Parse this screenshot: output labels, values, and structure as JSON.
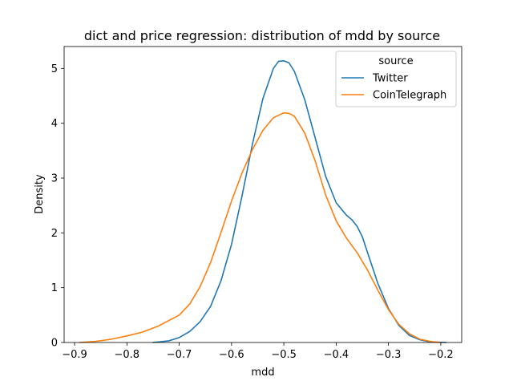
{
  "chart_data": {
    "type": "line",
    "title": "dict and price regression: distribution of mdd by source",
    "xlabel": "mdd",
    "ylabel": "Density",
    "xlim": [
      -0.92,
      -0.16
    ],
    "ylim": [
      0,
      5.4
    ],
    "xticks": [
      -0.9,
      -0.8,
      -0.7,
      -0.6,
      -0.5,
      -0.4,
      -0.3,
      -0.2
    ],
    "xtick_labels": [
      "−0.9",
      "−0.8",
      "−0.7",
      "−0.6",
      "−0.5",
      "−0.4",
      "−0.3",
      "−0.2"
    ],
    "yticks": [
      0,
      1,
      2,
      3,
      4,
      5
    ],
    "ytick_labels": [
      "0",
      "1",
      "2",
      "3",
      "4",
      "5"
    ],
    "legend": {
      "title": "source",
      "placement": "top-right"
    },
    "grid": false,
    "series": [
      {
        "name": "Twitter",
        "color": "#1f77b4",
        "x": [
          -0.75,
          -0.72,
          -0.7,
          -0.68,
          -0.66,
          -0.64,
          -0.62,
          -0.6,
          -0.58,
          -0.56,
          -0.54,
          -0.52,
          -0.51,
          -0.5,
          -0.49,
          -0.48,
          -0.46,
          -0.44,
          -0.42,
          -0.4,
          -0.38,
          -0.37,
          -0.36,
          -0.35,
          -0.34,
          -0.32,
          -0.3,
          -0.28,
          -0.26,
          -0.24,
          -0.22,
          -0.19
        ],
        "y": [
          0.0,
          0.03,
          0.09,
          0.2,
          0.38,
          0.66,
          1.13,
          1.79,
          2.67,
          3.62,
          4.45,
          5.0,
          5.13,
          5.14,
          5.1,
          4.95,
          4.43,
          3.73,
          3.03,
          2.55,
          2.32,
          2.24,
          2.12,
          1.93,
          1.64,
          1.07,
          0.62,
          0.31,
          0.13,
          0.05,
          0.01,
          0.0
        ]
      },
      {
        "name": "CoinTelegraph",
        "color": "#ff7f0e",
        "x": [
          -0.89,
          -0.86,
          -0.83,
          -0.8,
          -0.77,
          -0.74,
          -0.72,
          -0.7,
          -0.68,
          -0.66,
          -0.64,
          -0.62,
          -0.6,
          -0.58,
          -0.56,
          -0.54,
          -0.52,
          -0.5,
          -0.49,
          -0.48,
          -0.46,
          -0.44,
          -0.42,
          -0.4,
          -0.38,
          -0.36,
          -0.34,
          -0.32,
          -0.3,
          -0.28,
          -0.26,
          -0.24,
          -0.22,
          -0.2
        ],
        "y": [
          0.0,
          0.02,
          0.06,
          0.12,
          0.19,
          0.3,
          0.4,
          0.5,
          0.7,
          1.02,
          1.46,
          2.01,
          2.58,
          3.09,
          3.52,
          3.87,
          4.1,
          4.19,
          4.18,
          4.13,
          3.82,
          3.31,
          2.69,
          2.22,
          1.9,
          1.64,
          1.32,
          0.95,
          0.6,
          0.33,
          0.16,
          0.06,
          0.02,
          0.0
        ]
      }
    ]
  }
}
